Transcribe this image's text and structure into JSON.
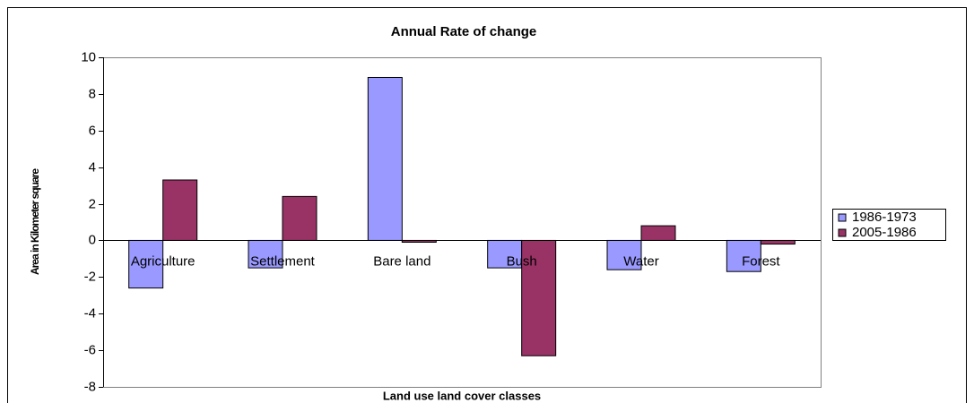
{
  "chart_data": {
    "type": "bar",
    "title": "Annual Rate of change",
    "x_label": "Land use land cover classes",
    "y_label": "Area in Kilometer square",
    "categories": [
      "Agriculture",
      "Settlement",
      "Bare land",
      "Bush",
      "Water",
      "Forest"
    ],
    "series": [
      {
        "name": "1986-1973",
        "color": "#9999ff",
        "values": [
          -2.6,
          -1.5,
          8.9,
          -1.5,
          -1.6,
          -1.7
        ]
      },
      {
        "name": "2005-1986",
        "color": "#993366",
        "values": [
          3.3,
          2.4,
          -0.1,
          -6.3,
          0.8,
          -0.2
        ]
      }
    ],
    "ylim": [
      -8,
      10
    ],
    "yticks": [
      -8,
      -6,
      -4,
      -2,
      0,
      2,
      4,
      6,
      8,
      10
    ],
    "grid": false,
    "legend": "right"
  }
}
